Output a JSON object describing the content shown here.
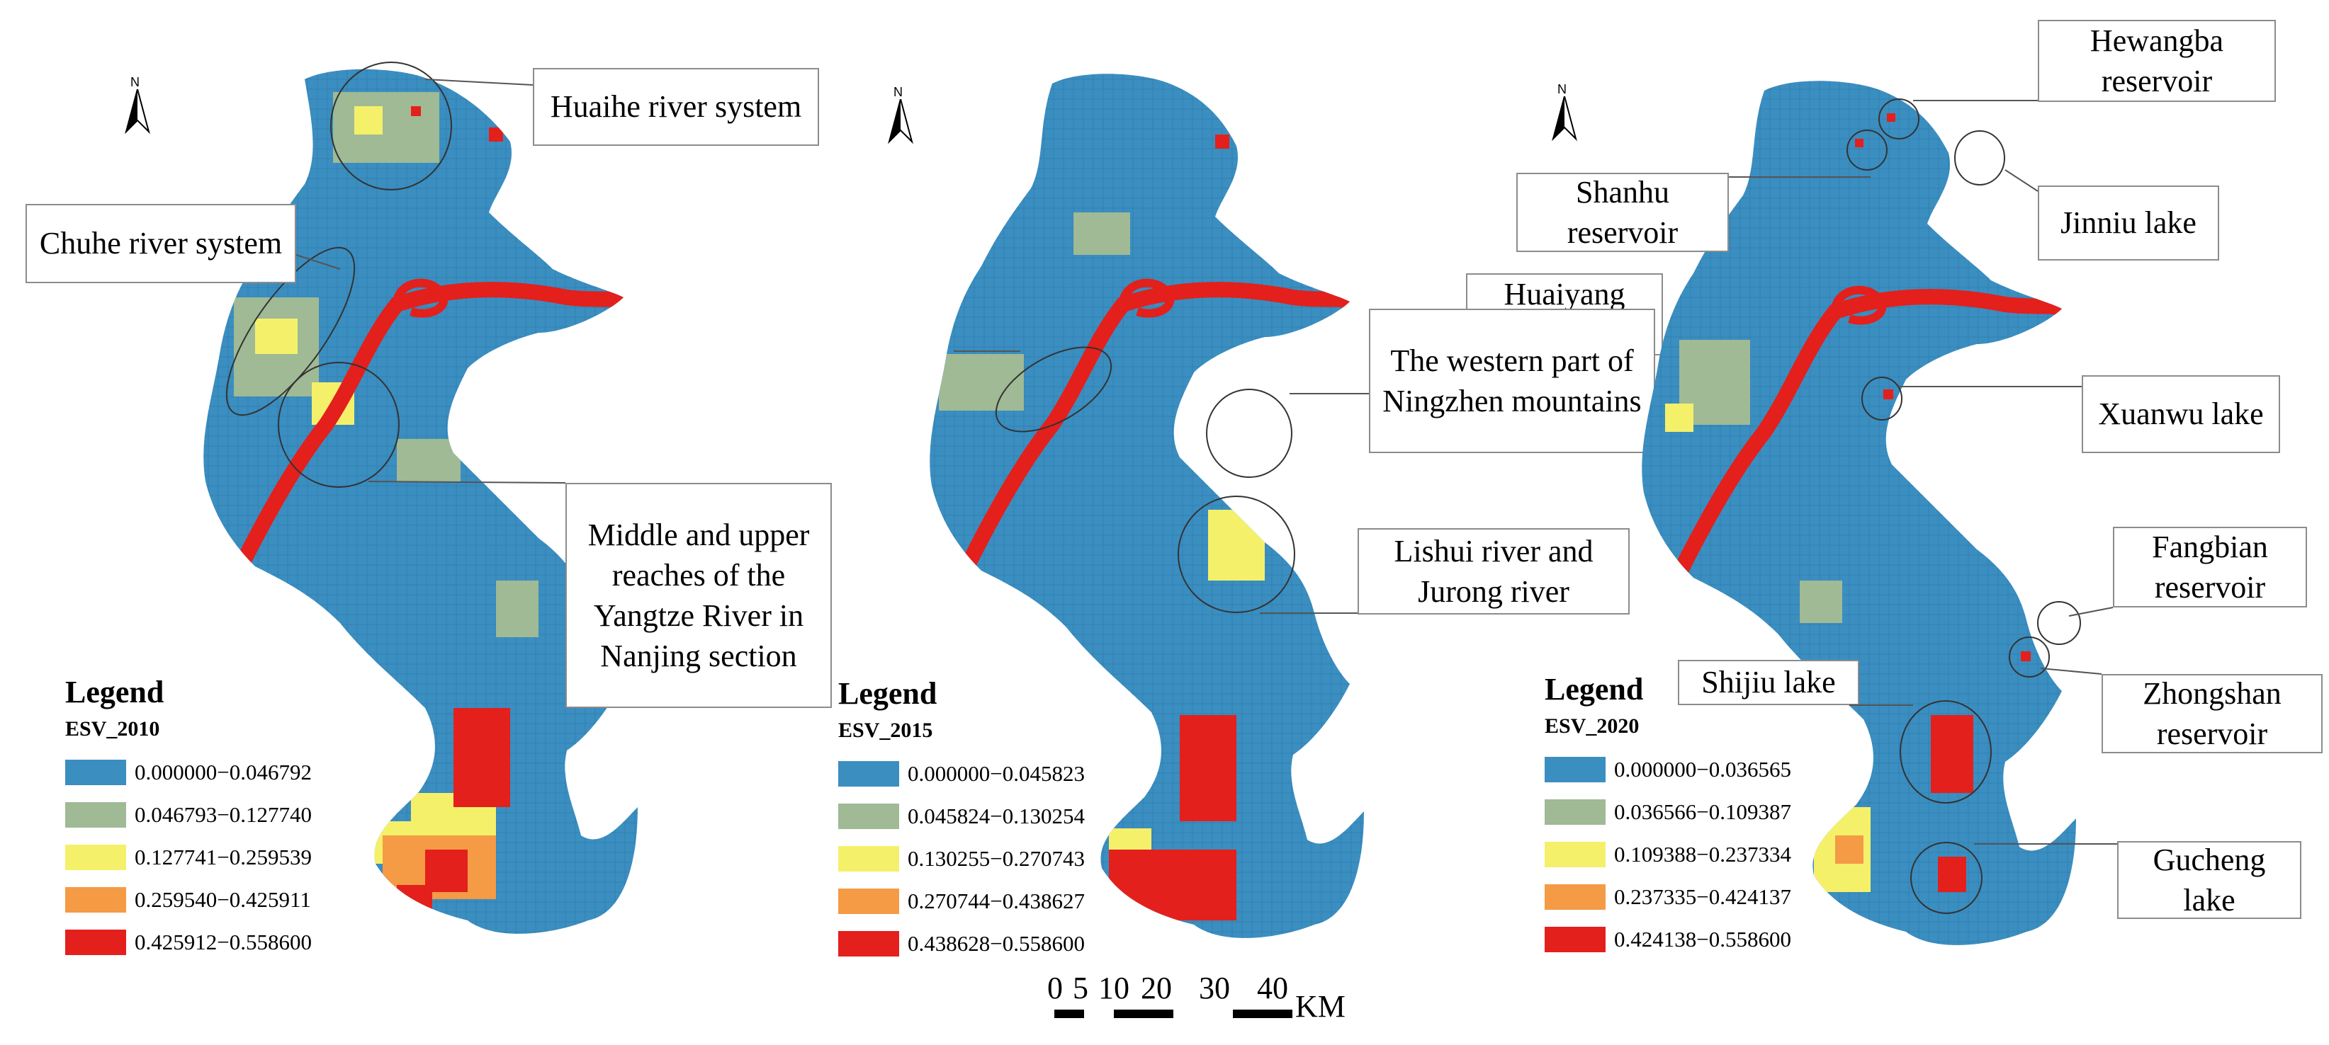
{
  "north_label": "N",
  "panels": [
    {
      "legend_title": "Legend",
      "esv_label": "ESV_2010",
      "classes": [
        {
          "range": "0.000000−0.046792",
          "color": "#3b8ec0"
        },
        {
          "range": "0.046793−0.127740",
          "color": "#9fba95"
        },
        {
          "range": "0.127741−0.259539",
          "color": "#f5f06a"
        },
        {
          "range": "0.259540−0.425911",
          "color": "#f59a45"
        },
        {
          "range": "0.425912−0.558600",
          "color": "#e3201c"
        }
      ],
      "callouts": [
        {
          "text": "Huaihe river system"
        },
        {
          "text": "Chuhe river system"
        },
        {
          "text": "Middle and upper reaches of the Yangtze River in Nanjing section"
        }
      ]
    },
    {
      "legend_title": "Legend",
      "esv_label": "ESV_2015",
      "classes": [
        {
          "range": "0.000000−0.045823",
          "color": "#3b8ec0"
        },
        {
          "range": "0.045824−0.130254",
          "color": "#9fba95"
        },
        {
          "range": "0.130255−0.270743",
          "color": "#f5f06a"
        },
        {
          "range": "0.270744−0.438627",
          "color": "#f59a45"
        },
        {
          "range": "0.438628−0.558600",
          "color": "#e3201c"
        }
      ],
      "callouts": [
        {
          "text": "Huaiyang mountains"
        },
        {
          "text": "The western part of Ningzhen mountains"
        },
        {
          "text": "Lishui river and Jurong river"
        }
      ]
    },
    {
      "legend_title": "Legend",
      "esv_label": "ESV_2020",
      "classes": [
        {
          "range": "0.000000−0.036565",
          "color": "#3b8ec0"
        },
        {
          "range": "0.036566−0.109387",
          "color": "#9fba95"
        },
        {
          "range": "0.109388−0.237334",
          "color": "#f5f06a"
        },
        {
          "range": "0.237335−0.424137",
          "color": "#f59a45"
        },
        {
          "range": "0.424138−0.558600",
          "color": "#e3201c"
        }
      ],
      "callouts": [
        {
          "text": "Hewangba reservoir"
        },
        {
          "text": "Shanhu reservoir"
        },
        {
          "text": "Jinniu lake"
        },
        {
          "text": "Xuanwu lake"
        },
        {
          "text": "Fangbian reservoir"
        },
        {
          "text": "Shijiu lake"
        },
        {
          "text": "Zhongshan reservoir"
        },
        {
          "text": "Gucheng lake"
        }
      ]
    }
  ],
  "scale_bar": {
    "ticks": [
      "0",
      "5",
      "10",
      "20",
      "30",
      "40"
    ],
    "unit": "KM"
  }
}
